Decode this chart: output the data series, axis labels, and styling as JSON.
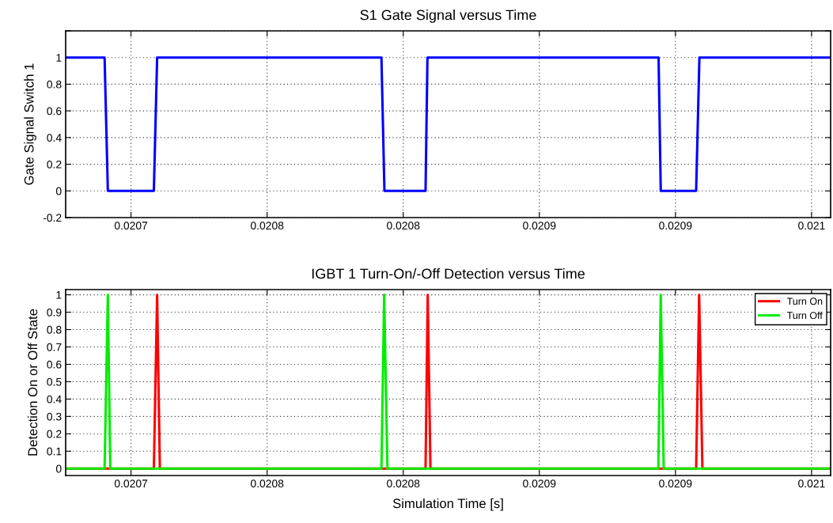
{
  "chart_data": [
    {
      "type": "line",
      "title": "S1 Gate Signal versus Time",
      "ylabel": "Gate Signal Switch 1",
      "xlim": [
        0.020676,
        0.020957
      ],
      "xticks": [
        {
          "value": 0.0207,
          "label": "0.0207"
        },
        {
          "value": 0.02075,
          "label": "0.0208"
        },
        {
          "value": 0.0208,
          "label": "0.0208"
        },
        {
          "value": 0.02085,
          "label": "0.0209"
        },
        {
          "value": 0.0209,
          "label": "0.0209"
        },
        {
          "value": 0.02095,
          "label": "0.021"
        }
      ],
      "ylim": [
        -0.2,
        1.2
      ],
      "yticks": [
        -0.2,
        0,
        0.2,
        0.4,
        0.6,
        0.8,
        1,
        {
          "value": 1.2,
          "label": null
        }
      ],
      "grid": true,
      "legend": false,
      "line_style": "solid",
      "marker": "none",
      "series": [
        {
          "color": "#0000ff",
          "x": [
            0.020676,
            0.0206903,
            0.0206915,
            0.0207084,
            0.0207096,
            0.020792,
            0.0207931,
            0.0208082,
            0.0208089,
            0.0208938,
            0.0208946,
            0.0209076,
            0.0209088,
            0.020957
          ],
          "values": [
            1,
            1,
            0,
            0,
            1,
            1,
            0,
            0,
            1,
            1,
            0,
            0,
            1,
            1
          ]
        }
      ]
    },
    {
      "type": "line",
      "title": "IGBT 1 Turn-On/-Off Detection versus Time",
      "xlabel": "Simulation Time [s]",
      "ylabel": "Detection On or Off State",
      "xlim": [
        0.020676,
        0.020957
      ],
      "xticks": [
        {
          "value": 0.0207,
          "label": "0.0207"
        },
        {
          "value": 0.02075,
          "label": "0.0208"
        },
        {
          "value": 0.0208,
          "label": "0.0208"
        },
        {
          "value": 0.02085,
          "label": "0.0209"
        },
        {
          "value": 0.0209,
          "label": "0.0209"
        },
        {
          "value": 0.02095,
          "label": "0.021"
        }
      ],
      "ylim": [
        -0.04,
        1.03
      ],
      "yticks": [
        0,
        0.1,
        0.2,
        0.3,
        0.4,
        0.5,
        0.6,
        0.7,
        0.8,
        0.9,
        1
      ],
      "grid": true,
      "legend": "top right",
      "line_style": "solid",
      "marker": "none",
      "series": [
        {
          "name": "Turn On",
          "color": "#ff0000",
          "x": [
            0.020676,
            0.0207084,
            0.0207096,
            0.0207106,
            0.0208082,
            0.020809,
            0.02081,
            0.0209076,
            0.0209087,
            0.0209099,
            0.020957
          ],
          "values": [
            0,
            0,
            1,
            0,
            0,
            1,
            0,
            0,
            1,
            0,
            0
          ]
        },
        {
          "name": "Turn Off",
          "color": "#00ee00",
          "x": [
            0.020676,
            0.0206903,
            0.0206915,
            0.0206924,
            0.020792,
            0.020793,
            0.0207942,
            0.0208937,
            0.0208946,
            0.0208957,
            0.020957
          ],
          "values": [
            0,
            0,
            1,
            0,
            0,
            1,
            0,
            0,
            1,
            0,
            0
          ]
        }
      ]
    }
  ]
}
